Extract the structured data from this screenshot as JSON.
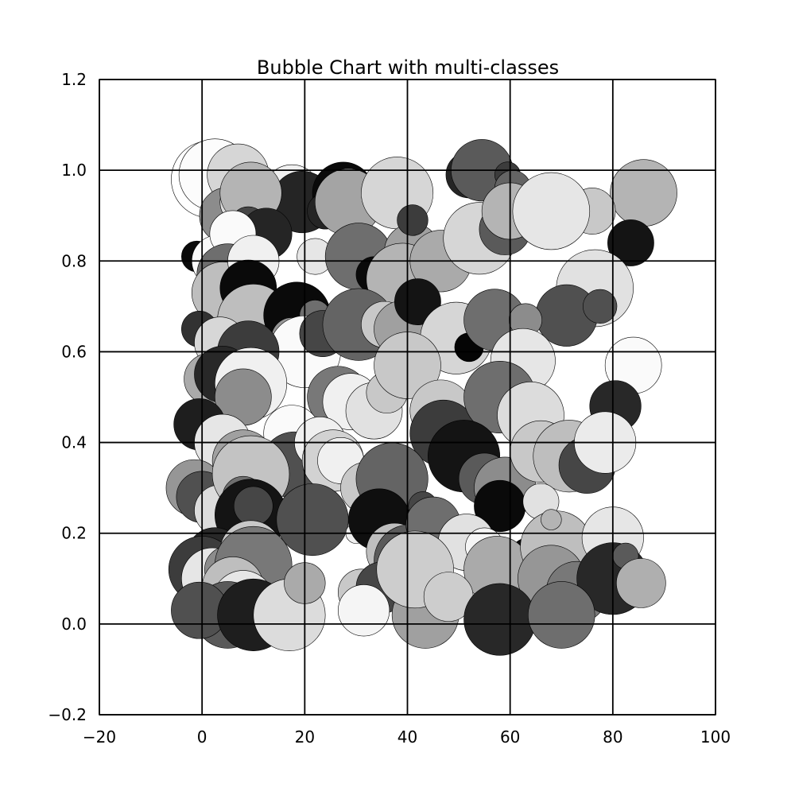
{
  "chart_data": {
    "type": "scatter",
    "title": "Bubble Chart with multi-classes",
    "xlabel": "",
    "ylabel": "",
    "xlim": [
      -20,
      100
    ],
    "ylim": [
      -0.2,
      1.2
    ],
    "x_ticks": [
      "−20",
      "0",
      "20",
      "40",
      "60",
      "80",
      "100"
    ],
    "y_ticks": [
      "−0.2",
      "0.0",
      "0.2",
      "0.4",
      "0.6",
      "0.8",
      "1.0",
      "1.2"
    ],
    "grid": true,
    "size_unit": "radius in x-axis units",
    "points": [
      {
        "x": 1.5,
        "y": 0.98,
        "size": 7.5,
        "gray": 255
      },
      {
        "x": 2.5,
        "y": 0.99,
        "size": 7.0,
        "gray": 252
      },
      {
        "x": 7.0,
        "y": 0.99,
        "size": 6.0,
        "gray": 214
      },
      {
        "x": 17.5,
        "y": 0.95,
        "size": 5.5,
        "gray": 240
      },
      {
        "x": 19.5,
        "y": 0.93,
        "size": 6.0,
        "gray": 37
      },
      {
        "x": 27.5,
        "y": 0.95,
        "size": 6.0,
        "gray": 10
      },
      {
        "x": 24.0,
        "y": 0.91,
        "size": 3.5,
        "gray": 37
      },
      {
        "x": 28.5,
        "y": 0.93,
        "size": 6.5,
        "gray": 164
      },
      {
        "x": 38.0,
        "y": 0.95,
        "size": 7.0,
        "gray": 214
      },
      {
        "x": 52.0,
        "y": 0.99,
        "size": 4.5,
        "gray": 37
      },
      {
        "x": 54.5,
        "y": 1.0,
        "size": 6.0,
        "gray": 90
      },
      {
        "x": 59.5,
        "y": 0.99,
        "size": 2.5,
        "gray": 60
      },
      {
        "x": 60.5,
        "y": 0.96,
        "size": 3.5,
        "gray": 100
      },
      {
        "x": 68.0,
        "y": 0.92,
        "size": 6.5,
        "gray": 140
      },
      {
        "x": 86.0,
        "y": 0.95,
        "size": 6.5,
        "gray": 180
      },
      {
        "x": 76.0,
        "y": 0.91,
        "size": 4.5,
        "gray": 200
      },
      {
        "x": 5.0,
        "y": 0.9,
        "size": 5.5,
        "gray": 140
      },
      {
        "x": 8.0,
        "y": 0.93,
        "size": 4.5,
        "gray": 220
      },
      {
        "x": 9.5,
        "y": 0.95,
        "size": 6.0,
        "gray": 180
      },
      {
        "x": 9.0,
        "y": 0.88,
        "size": 3.5,
        "gray": 70
      },
      {
        "x": 12.5,
        "y": 0.86,
        "size": 5.0,
        "gray": 37
      },
      {
        "x": 8.5,
        "y": 0.82,
        "size": 3.5,
        "gray": 90
      },
      {
        "x": -1.0,
        "y": 0.81,
        "size": 3.0,
        "gray": 10
      },
      {
        "x": 3.0,
        "y": 0.8,
        "size": 5.0,
        "gray": 250
      },
      {
        "x": 6.0,
        "y": 0.86,
        "size": 4.5,
        "gray": 250
      },
      {
        "x": 22.0,
        "y": 0.81,
        "size": 3.5,
        "gray": 230
      },
      {
        "x": 30.5,
        "y": 0.81,
        "size": 6.5,
        "gray": 110
      },
      {
        "x": 33.5,
        "y": 0.77,
        "size": 3.5,
        "gray": 10
      },
      {
        "x": 41.0,
        "y": 0.82,
        "size": 5.5,
        "gray": 160
      },
      {
        "x": 39.0,
        "y": 0.76,
        "size": 7.0,
        "gray": 180
      },
      {
        "x": 41.0,
        "y": 0.89,
        "size": 3.0,
        "gray": 60
      },
      {
        "x": 46.5,
        "y": 0.8,
        "size": 6.0,
        "gray": 170
      },
      {
        "x": 54.0,
        "y": 0.85,
        "size": 7.0,
        "gray": 214
      },
      {
        "x": 59.0,
        "y": 0.87,
        "size": 5.0,
        "gray": 90
      },
      {
        "x": 60.0,
        "y": 0.91,
        "size": 5.5,
        "gray": 180
      },
      {
        "x": 68.0,
        "y": 0.91,
        "size": 7.5,
        "gray": 230
      },
      {
        "x": 83.5,
        "y": 0.84,
        "size": 4.5,
        "gray": 20
      },
      {
        "x": 76.5,
        "y": 0.74,
        "size": 7.5,
        "gray": 225
      },
      {
        "x": 71.0,
        "y": 0.68,
        "size": 6.0,
        "gray": 80
      },
      {
        "x": 77.5,
        "y": 0.7,
        "size": 3.3,
        "gray": 80
      },
      {
        "x": 5.0,
        "y": 0.77,
        "size": 6.0,
        "gray": 110
      },
      {
        "x": 4.0,
        "y": 0.73,
        "size": 6.0,
        "gray": 190
      },
      {
        "x": 10.0,
        "y": 0.8,
        "size": 5.0,
        "gray": 240
      },
      {
        "x": 9.0,
        "y": 0.74,
        "size": 5.5,
        "gray": 10
      },
      {
        "x": 10.0,
        "y": 0.67,
        "size": 7.0,
        "gray": 190
      },
      {
        "x": 18.5,
        "y": 0.68,
        "size": 6.5,
        "gray": 10
      },
      {
        "x": 22.0,
        "y": 0.68,
        "size": 3.0,
        "gray": 110
      },
      {
        "x": 17.5,
        "y": 0.63,
        "size": 4.0,
        "gray": 150
      },
      {
        "x": 20.0,
        "y": 0.6,
        "size": 7.0,
        "gray": 250
      },
      {
        "x": 23.5,
        "y": 0.64,
        "size": 4.5,
        "gray": 70
      },
      {
        "x": 30.5,
        "y": 0.66,
        "size": 7.0,
        "gray": 100
      },
      {
        "x": 35.5,
        "y": 0.66,
        "size": 4.5,
        "gray": 200
      },
      {
        "x": 39.0,
        "y": 0.65,
        "size": 5.5,
        "gray": 160
      },
      {
        "x": 42.0,
        "y": 0.71,
        "size": 4.5,
        "gray": 20
      },
      {
        "x": 49.5,
        "y": 0.63,
        "size": 7.0,
        "gray": 214
      },
      {
        "x": 52.0,
        "y": 0.61,
        "size": 2.8,
        "gray": 5
      },
      {
        "x": 57.0,
        "y": 0.67,
        "size": 6.0,
        "gray": 110
      },
      {
        "x": 63.0,
        "y": 0.67,
        "size": 3.2,
        "gray": 140
      },
      {
        "x": 62.5,
        "y": 0.58,
        "size": 6.3,
        "gray": 230
      },
      {
        "x": 84.0,
        "y": 0.57,
        "size": 5.5,
        "gray": 250
      },
      {
        "x": 80.5,
        "y": 0.48,
        "size": 5.0,
        "gray": 40
      },
      {
        "x": -0.5,
        "y": 0.65,
        "size": 3.5,
        "gray": 50
      },
      {
        "x": 3.5,
        "y": 0.62,
        "size": 5.0,
        "gray": 215
      },
      {
        "x": 9.0,
        "y": 0.6,
        "size": 6.0,
        "gray": 60
      },
      {
        "x": 1.5,
        "y": 0.54,
        "size": 5.0,
        "gray": 170
      },
      {
        "x": 4.0,
        "y": 0.55,
        "size": 5.5,
        "gray": 40
      },
      {
        "x": 9.5,
        "y": 0.53,
        "size": 7.0,
        "gray": 240
      },
      {
        "x": 8.0,
        "y": 0.5,
        "size": 5.5,
        "gray": 140
      },
      {
        "x": 26.5,
        "y": 0.5,
        "size": 6.0,
        "gray": 120
      },
      {
        "x": 29.0,
        "y": 0.49,
        "size": 5.5,
        "gray": 240
      },
      {
        "x": 33.5,
        "y": 0.47,
        "size": 5.5,
        "gray": 225
      },
      {
        "x": 36.0,
        "y": 0.51,
        "size": 4.0,
        "gray": 200
      },
      {
        "x": 40.0,
        "y": 0.57,
        "size": 6.5,
        "gray": 200
      },
      {
        "x": 46.5,
        "y": 0.47,
        "size": 6.0,
        "gray": 200
      },
      {
        "x": 47.0,
        "y": 0.42,
        "size": 6.5,
        "gray": 60
      },
      {
        "x": 58.0,
        "y": 0.5,
        "size": 7.0,
        "gray": 110
      },
      {
        "x": 64.0,
        "y": 0.46,
        "size": 6.5,
        "gray": 220
      },
      {
        "x": -0.5,
        "y": 0.44,
        "size": 5.0,
        "gray": 30
      },
      {
        "x": 4.0,
        "y": 0.4,
        "size": 5.5,
        "gray": 230
      },
      {
        "x": 8.0,
        "y": 0.36,
        "size": 6.0,
        "gray": 160
      },
      {
        "x": 17.5,
        "y": 0.42,
        "size": 5.5,
        "gray": 250
      },
      {
        "x": 18.0,
        "y": 0.35,
        "size": 6.5,
        "gray": 80
      },
      {
        "x": 23.0,
        "y": 0.4,
        "size": 5.0,
        "gray": 240
      },
      {
        "x": 25.5,
        "y": 0.36,
        "size": 6.0,
        "gray": 210
      },
      {
        "x": 27.0,
        "y": 0.36,
        "size": 4.5,
        "gray": 240
      },
      {
        "x": 32.0,
        "y": 0.3,
        "size": 5.0,
        "gray": 200
      },
      {
        "x": 37.0,
        "y": 0.32,
        "size": 7.0,
        "gray": 100
      },
      {
        "x": 51.0,
        "y": 0.37,
        "size": 7.0,
        "gray": 20
      },
      {
        "x": 55.0,
        "y": 0.32,
        "size": 5.0,
        "gray": 90
      },
      {
        "x": 59.0,
        "y": 0.3,
        "size": 6.0,
        "gray": 140
      },
      {
        "x": 58.0,
        "y": 0.26,
        "size": 5.0,
        "gray": 10
      },
      {
        "x": 66.0,
        "y": 0.38,
        "size": 6.0,
        "gray": 200
      },
      {
        "x": 71.5,
        "y": 0.37,
        "size": 7.0,
        "gray": 190
      },
      {
        "x": 75.0,
        "y": 0.35,
        "size": 5.5,
        "gray": 70
      },
      {
        "x": 78.5,
        "y": 0.4,
        "size": 6.0,
        "gray": 235
      },
      {
        "x": 66.0,
        "y": 0.27,
        "size": 3.5,
        "gray": 225
      },
      {
        "x": -1.5,
        "y": 0.3,
        "size": 5.5,
        "gray": 150
      },
      {
        "x": 0.0,
        "y": 0.28,
        "size": 5.0,
        "gray": 80
      },
      {
        "x": 3.5,
        "y": 0.25,
        "size": 5.0,
        "gray": 220
      },
      {
        "x": 9.5,
        "y": 0.33,
        "size": 7.5,
        "gray": 195
      },
      {
        "x": 8.0,
        "y": 0.28,
        "size": 4.0,
        "gray": 110
      },
      {
        "x": 9.5,
        "y": 0.24,
        "size": 7.0,
        "gray": 20
      },
      {
        "x": 10.0,
        "y": 0.26,
        "size": 3.8,
        "gray": 70
      },
      {
        "x": 21.5,
        "y": 0.23,
        "size": 7.0,
        "gray": 80
      },
      {
        "x": 30.0,
        "y": 0.2,
        "size": 2.0,
        "gray": 240
      },
      {
        "x": 34.5,
        "y": 0.23,
        "size": 6.0,
        "gray": 15
      },
      {
        "x": 37.5,
        "y": 0.16,
        "size": 5.5,
        "gray": 190
      },
      {
        "x": 40.5,
        "y": 0.14,
        "size": 7.0,
        "gray": 90
      },
      {
        "x": 43.0,
        "y": 0.26,
        "size": 2.8,
        "gray": 70
      },
      {
        "x": 45.0,
        "y": 0.22,
        "size": 5.3,
        "gray": 110
      },
      {
        "x": 51.5,
        "y": 0.18,
        "size": 5.5,
        "gray": 225
      },
      {
        "x": 55.0,
        "y": 0.17,
        "size": 3.7,
        "gray": 245
      },
      {
        "x": 63.0,
        "y": 0.16,
        "size": 2.5,
        "gray": 10
      },
      {
        "x": 57.5,
        "y": 0.12,
        "size": 6.5,
        "gray": 170
      },
      {
        "x": 69.0,
        "y": 0.17,
        "size": 7.0,
        "gray": 190
      },
      {
        "x": 68.0,
        "y": 0.23,
        "size": 2.0,
        "gray": 180
      },
      {
        "x": 68.0,
        "y": 0.1,
        "size": 6.5,
        "gray": 150
      },
      {
        "x": 73.0,
        "y": 0.07,
        "size": 6.0,
        "gray": 120
      },
      {
        "x": 80.0,
        "y": 0.19,
        "size": 6.0,
        "gray": 230
      },
      {
        "x": 80.0,
        "y": 0.1,
        "size": 7.0,
        "gray": 40
      },
      {
        "x": 82.5,
        "y": 0.15,
        "size": 2.5,
        "gray": 90
      },
      {
        "x": 85.5,
        "y": 0.09,
        "size": 4.8,
        "gray": 175
      },
      {
        "x": 2.5,
        "y": 0.15,
        "size": 5.5,
        "gray": 40
      },
      {
        "x": 0.0,
        "y": 0.12,
        "size": 6.5,
        "gray": 60
      },
      {
        "x": 2.0,
        "y": 0.1,
        "size": 6.0,
        "gray": 230
      },
      {
        "x": 5.0,
        "y": 0.12,
        "size": 4.5,
        "gray": 140
      },
      {
        "x": 9.5,
        "y": 0.16,
        "size": 6.0,
        "gray": 200
      },
      {
        "x": 10.0,
        "y": 0.13,
        "size": 7.5,
        "gray": 120
      },
      {
        "x": 6.0,
        "y": 0.08,
        "size": 6.0,
        "gray": 190
      },
      {
        "x": 8.0,
        "y": 0.05,
        "size": 6.0,
        "gray": 230
      },
      {
        "x": 5.0,
        "y": 0.02,
        "size": 6.5,
        "gray": 90
      },
      {
        "x": -0.5,
        "y": 0.03,
        "size": 5.5,
        "gray": 80
      },
      {
        "x": 10.0,
        "y": 0.02,
        "size": 7.0,
        "gray": 30
      },
      {
        "x": 17.0,
        "y": 0.02,
        "size": 7.0,
        "gray": 220
      },
      {
        "x": 20.0,
        "y": 0.09,
        "size": 4.0,
        "gray": 170
      },
      {
        "x": 31.0,
        "y": 0.07,
        "size": 4.5,
        "gray": 200
      },
      {
        "x": 35.0,
        "y": 0.08,
        "size": 5.0,
        "gray": 70
      },
      {
        "x": 31.5,
        "y": 0.03,
        "size": 5.0,
        "gray": 245
      },
      {
        "x": 43.5,
        "y": 0.02,
        "size": 6.5,
        "gray": 160
      },
      {
        "x": 41.5,
        "y": 0.12,
        "size": 7.5,
        "gray": 205
      },
      {
        "x": 48.0,
        "y": 0.06,
        "size": 4.8,
        "gray": 205
      },
      {
        "x": 58.0,
        "y": 0.01,
        "size": 7.0,
        "gray": 40
      },
      {
        "x": 70.0,
        "y": 0.02,
        "size": 6.5,
        "gray": 110
      }
    ]
  }
}
